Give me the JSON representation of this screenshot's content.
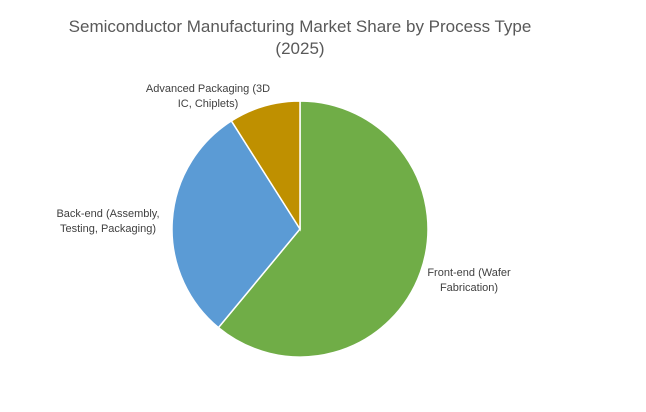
{
  "chart_data": {
    "type": "pie",
    "title": "Semiconductor Manufacturing Market Share by Process Type (2025)",
    "categories": [
      "Front-end (Wafer Fabrication)",
      "Back-end (Assembly, Testing, Packaging)",
      "Advanced Packaging (3D IC, Chiplets)"
    ],
    "values": [
      61,
      30,
      9
    ],
    "colors": [
      "#70ad47",
      "#5b9bd5",
      "#bf9000"
    ]
  }
}
